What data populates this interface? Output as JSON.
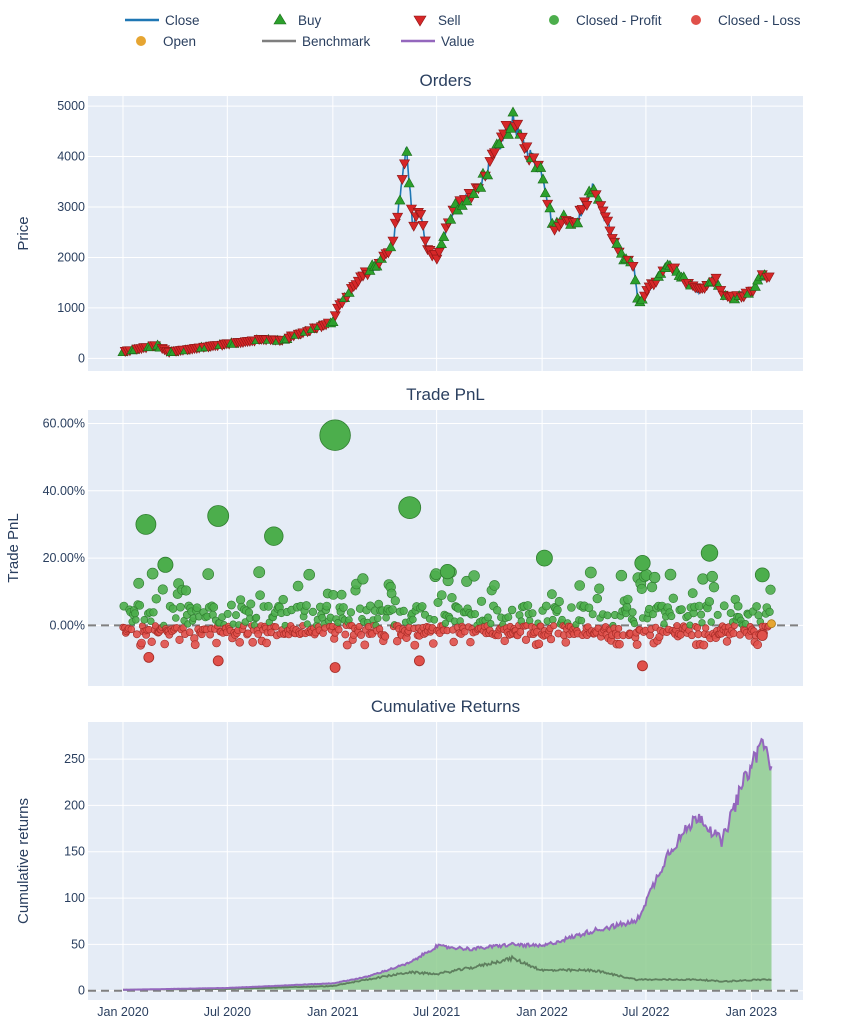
{
  "colors": {
    "plot_bg": "#e5ecf6",
    "grid": "#ffffff",
    "close": "#1f77b4",
    "open": "#e6a532",
    "buy": "#2ca02c",
    "sell": "#d62728",
    "benchmark": "#7f7f7f",
    "value": "#9467bd",
    "profit": "#4cae4c",
    "loss": "#e0504a",
    "fill": "#8fcc8f",
    "dash": "#808080"
  },
  "legend": [
    {
      "label": "Close",
      "symbol": "line",
      "color": "close"
    },
    {
      "label": "Buy",
      "symbol": "triangle-up",
      "color": "buy"
    },
    {
      "label": "Sell",
      "symbol": "triangle-down",
      "color": "sell"
    },
    {
      "label": "Closed - Profit",
      "symbol": "circle",
      "color": "profit"
    },
    {
      "label": "Closed - Loss",
      "symbol": "circle",
      "color": "loss"
    },
    {
      "label": "Open",
      "symbol": "circle",
      "color": "open"
    },
    {
      "label": "Benchmark",
      "symbol": "line",
      "color": "benchmark"
    },
    {
      "label": "Value",
      "symbol": "line",
      "color": "value"
    }
  ],
  "x_ticks": [
    "Jan 2020",
    "Jul 2020",
    "Jan 2021",
    "Jul 2021",
    "Jan 2022",
    "Jul 2022",
    "Jan 2023"
  ],
  "chart_data": [
    {
      "type": "line",
      "title": "Orders",
      "ylabel": "Price",
      "ylim": [
        -250,
        5200
      ],
      "y_ticks": [
        "0",
        "1000",
        "2000",
        "3000",
        "4000",
        "5000"
      ],
      "y_tick_values": [
        0,
        1000,
        2000,
        3000,
        4000,
        5000
      ],
      "grid": true,
      "x": [
        "2020-01-01",
        "2020-03-01",
        "2020-03-20",
        "2020-06-01",
        "2020-09-01",
        "2020-10-01",
        "2020-12-01",
        "2021-01-01",
        "2021-01-10",
        "2021-02-01",
        "2021-03-01",
        "2021-04-01",
        "2021-04-15",
        "2021-05-01",
        "2021-05-10",
        "2021-05-20",
        "2021-06-01",
        "2021-06-15",
        "2021-07-01",
        "2021-08-01",
        "2021-09-01",
        "2021-10-01",
        "2021-11-10",
        "2021-12-01",
        "2022-01-01",
        "2022-01-20",
        "2022-02-10",
        "2022-03-01",
        "2022-04-01",
        "2022-05-01",
        "2022-05-20",
        "2022-06-10",
        "2022-06-18",
        "2022-07-01",
        "2022-08-10",
        "2022-09-01",
        "2022-10-01",
        "2022-11-01",
        "2022-11-10",
        "2022-12-01",
        "2023-01-01",
        "2023-01-15",
        "2023-02-01"
      ],
      "series": [
        {
          "name": "Close",
          "values": [
            130,
            260,
            120,
            240,
            380,
            350,
            600,
            730,
            1000,
            1350,
            1700,
            2000,
            2250,
            3400,
            4200,
            2600,
            2900,
            2200,
            2000,
            3000,
            3200,
            3800,
            4750,
            4200,
            3700,
            2600,
            2800,
            2700,
            3400,
            2500,
            2000,
            1800,
            1100,
            1300,
            1850,
            1600,
            1350,
            1600,
            1250,
            1200,
            1300,
            1600,
            1650
          ]
        }
      ]
    },
    {
      "type": "scatter",
      "title": "Trade PnL",
      "ylabel": "Trade PnL",
      "ylim": [
        -18,
        64
      ],
      "y_ticks": [
        "0.00%",
        "20.00%",
        "40.00%",
        "60.00%"
      ],
      "y_tick_values": [
        0,
        20,
        40,
        60
      ],
      "grid": true,
      "series": [
        {
          "name": "Closed - Profit",
          "x": [
            "2020-02-10",
            "2020-03-15",
            "2020-06-15",
            "2020-09-20",
            "2021-01-05",
            "2021-05-15",
            "2021-07-20",
            "2022-01-05",
            "2022-06-25",
            "2022-10-20",
            "2023-01-20"
          ],
          "values": [
            30,
            18,
            32.5,
            26.5,
            56.5,
            35,
            16,
            20,
            18.5,
            21.5,
            15
          ]
        },
        {
          "name": "Closed - Loss",
          "x": [
            "2020-02-15",
            "2020-06-15",
            "2021-01-05",
            "2021-06-01",
            "2022-06-25",
            "2023-01-20"
          ],
          "values": [
            -9.5,
            -10.5,
            -12.5,
            -10.5,
            -12,
            -3
          ]
        },
        {
          "name": "Open",
          "x": [
            "2023-02-05"
          ],
          "values": [
            0.5
          ]
        }
      ]
    },
    {
      "type": "area",
      "title": "Cumulative Returns",
      "ylabel": "Cumulative returns",
      "ylim": [
        -10,
        290
      ],
      "y_ticks": [
        "0",
        "50",
        "100",
        "150",
        "200",
        "250"
      ],
      "y_tick_values": [
        0,
        50,
        100,
        150,
        200,
        250
      ],
      "grid": true,
      "x": [
        "2020-01-01",
        "2020-07-01",
        "2021-01-01",
        "2021-03-01",
        "2021-05-15",
        "2021-07-01",
        "2021-09-01",
        "2021-11-10",
        "2022-01-01",
        "2022-04-01",
        "2022-06-15",
        "2022-08-10",
        "2022-10-01",
        "2022-11-10",
        "2022-12-15",
        "2023-01-20",
        "2023-02-05"
      ],
      "series": [
        {
          "name": "Value",
          "values": [
            1,
            3,
            8,
            15,
            30,
            48,
            45,
            50,
            48,
            65,
            75,
            150,
            190,
            160,
            220,
            270,
            242
          ]
        },
        {
          "name": "Benchmark",
          "values": [
            1,
            2,
            5,
            12,
            20,
            18,
            25,
            35,
            22,
            22,
            12,
            12,
            12,
            10,
            11,
            12,
            12
          ]
        }
      ]
    }
  ]
}
